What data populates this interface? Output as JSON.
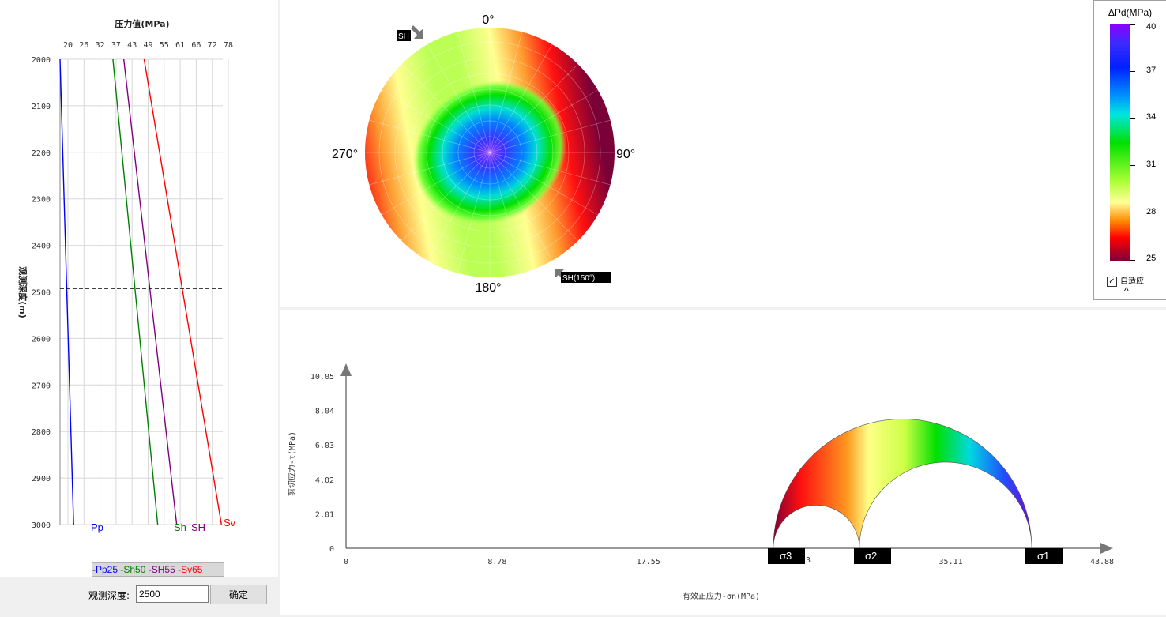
{
  "depth_chart": {
    "title": "压力值(MPa)",
    "ylabel": "观测深度(m)",
    "x_ticks": [
      "20",
      "26",
      "32",
      "37",
      "43",
      "49",
      "55",
      "61",
      "66",
      "72",
      "78"
    ],
    "y_ticks": [
      "2000",
      "2100",
      "2200",
      "2300",
      "2400",
      "2500",
      "2600",
      "2700",
      "2800",
      "2900",
      "3000"
    ],
    "line_labels": [
      "Pp",
      "Sh",
      "SH",
      "Sv"
    ],
    "legend": [
      {
        "text": "-Pp25",
        "color": "#0000ff"
      },
      {
        "text": "-Sh50",
        "color": "#008000"
      },
      {
        "text": "-SH55",
        "color": "#800080"
      },
      {
        "text": "-Sv65",
        "color": "#ff0000"
      }
    ]
  },
  "chart_data": [
    {
      "type": "line",
      "title": "压力值(MPa)",
      "xlabel": "压力值(MPa)",
      "ylabel": "观测深度(m)",
      "xlim": [
        18,
        78
      ],
      "ylim": [
        3000,
        2000
      ],
      "series": [
        {
          "name": "Pp",
          "color": "#0000ff",
          "points": [
            [
              18,
              2000
            ],
            [
              23,
              3000
            ]
          ]
        },
        {
          "name": "Sh",
          "color": "#008000",
          "points": [
            [
              37.5,
              2000
            ],
            [
              54,
              3000
            ]
          ]
        },
        {
          "name": "SH",
          "color": "#800080",
          "points": [
            [
              41.5,
              2000
            ],
            [
              61,
              3000
            ]
          ]
        },
        {
          "name": "Sv",
          "color": "#ff0000",
          "points": [
            [
              49,
              2000
            ],
            [
              77.5,
              3000
            ]
          ]
        }
      ],
      "reference_depth": 2500
    },
    {
      "type": "line",
      "xlabel": "有效正应力-σn(MPa)",
      "ylabel": "剪切应力-τ(MPa)",
      "x_ticks": [
        "0",
        "8.78",
        "17.55",
        "26.33",
        "35.11",
        "43.88"
      ],
      "y_ticks": [
        "0",
        "2.01",
        "4.02",
        "6.03",
        "8.04",
        "10.05"
      ],
      "xlim": [
        0,
        43.88
      ],
      "ylim": [
        0,
        10.05
      ],
      "sigma3": 24.8,
      "sigma2": 29.8,
      "sigma1": 39.8
    }
  ],
  "stereonet": {
    "labels": {
      "north": "0°",
      "east": "90°",
      "south": "180°",
      "west": "270°"
    },
    "sh_label": "SH",
    "SH_label": "SH(150°)"
  },
  "colorbar": {
    "title": "ΔPd(MPa)",
    "ticks": [
      "40",
      "37",
      "34",
      "31",
      "28",
      "25"
    ],
    "auto_fit_label": "自适应",
    "auto_fit_checked": "✓",
    "collapse_icon": "^"
  },
  "mohr": {
    "sigma_labels": [
      "σ3",
      "σ2",
      "σ1"
    ],
    "partial_tick": "3"
  },
  "controls": {
    "depth_label": "观测深度:",
    "depth_value": "2500",
    "confirm_label": "确定"
  }
}
